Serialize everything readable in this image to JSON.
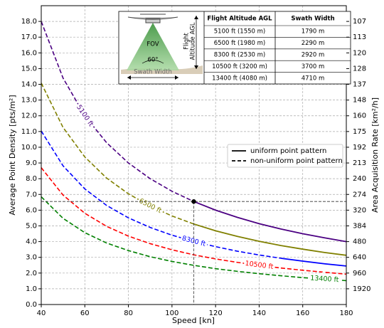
{
  "chart_data": {
    "type": "line",
    "xlabel": "Speed [kn]",
    "ylabel": "Average Point Density [pts/m²]",
    "y2label": "Area Acquisition Rate [km²/h]",
    "x": [
      40,
      50,
      60,
      70,
      80,
      90,
      100,
      110,
      120,
      130,
      140,
      150,
      160,
      170,
      180
    ],
    "series": [
      {
        "name": "5100 ft",
        "color": "#4b0082",
        "uniform_from": 110,
        "values": [
          18.0,
          14.4,
          12.0,
          10.29,
          9.0,
          8.0,
          7.2,
          6.55,
          6.0,
          5.54,
          5.14,
          4.8,
          4.5,
          4.24,
          4.0
        ]
      },
      {
        "name": "6500 ft",
        "color": "#808000",
        "uniform_from": 110,
        "values": [
          14.08,
          11.26,
          9.38,
          8.04,
          7.04,
          6.26,
          5.63,
          5.12,
          4.69,
          4.33,
          4.02,
          3.75,
          3.52,
          3.31,
          3.13
        ]
      },
      {
        "name": "8300 ft",
        "color": "#0000ff",
        "uniform_from": 150,
        "values": [
          11.03,
          8.82,
          7.35,
          6.3,
          5.51,
          4.9,
          4.41,
          4.01,
          3.68,
          3.39,
          3.15,
          2.94,
          2.76,
          2.59,
          2.45
        ]
      },
      {
        "name": "10500 ft",
        "color": "#ff0000",
        "values": [
          8.7,
          6.96,
          5.8,
          4.97,
          4.35,
          3.87,
          3.48,
          3.16,
          2.9,
          2.68,
          2.49,
          2.32,
          2.18,
          2.05,
          1.93
        ]
      },
      {
        "name": "13400 ft",
        "color": "#008000",
        "values": [
          6.85,
          5.48,
          4.57,
          3.91,
          3.43,
          3.04,
          2.74,
          2.49,
          2.28,
          2.11,
          1.96,
          1.83,
          1.71,
          1.61,
          1.52
        ]
      }
    ],
    "xlim": [
      40,
      180
    ],
    "xticks": [
      40,
      60,
      80,
      100,
      120,
      140,
      160,
      180
    ],
    "ylim": [
      0,
      19
    ],
    "yticks": [
      {
        "value": 0,
        "label": "0.0"
      },
      {
        "value": 1,
        "label": "1.0"
      },
      {
        "value": 2,
        "label": "2.0"
      },
      {
        "value": 3,
        "label": "3.0"
      },
      {
        "value": 4,
        "label": "4.0"
      },
      {
        "value": 5,
        "label": "5.0"
      },
      {
        "value": 6,
        "label": "6.0"
      },
      {
        "value": 7,
        "label": "7.0"
      },
      {
        "value": 8,
        "label": "8.0"
      },
      {
        "value": 9,
        "label": "9.0"
      },
      {
        "value": 10,
        "label": "10.0"
      },
      {
        "value": 11,
        "label": "11.0"
      },
      {
        "value": 12,
        "label": "12.0"
      },
      {
        "value": 13,
        "label": "13.0"
      },
      {
        "value": 14,
        "label": "14.0"
      },
      {
        "value": 15,
        "label": "15.0"
      },
      {
        "value": 16,
        "label": "16.0"
      },
      {
        "value": 17,
        "label": "17.0"
      },
      {
        "value": 18,
        "label": "18.0"
      }
    ],
    "y2ticks": [
      1920,
      960,
      640,
      480,
      384,
      320,
      274,
      240,
      213,
      192,
      175,
      160,
      148,
      137,
      128,
      120,
      113,
      107
    ],
    "grid": true,
    "legend": {
      "position": "right",
      "entries": [
        {
          "label": "uniform point pattern",
          "linestyle": "solid",
          "color": "#000000"
        },
        {
          "label": "non-uniform point pattern",
          "linestyle": "dashed",
          "color": "#000000"
        }
      ]
    },
    "inset": {
      "fov_label": "FOV",
      "angle_label": "60°",
      "swath_label": "Swath Width",
      "altitude_label": [
        "Flight",
        "Altitude AGL"
      ],
      "table": {
        "header": [
          "Flight Altitude AGL",
          "Swath Width"
        ],
        "rows": [
          [
            "5100 ft (1550 m)",
            "1790 m"
          ],
          [
            "6500 ft (1980 m)",
            "2290 m"
          ],
          [
            "8300 ft (2530 m)",
            "2920 m"
          ],
          [
            "10500 ft (3200 m)",
            "3700 m"
          ],
          [
            "13400 ft (4080 m)",
            "4710 m"
          ]
        ]
      }
    }
  }
}
